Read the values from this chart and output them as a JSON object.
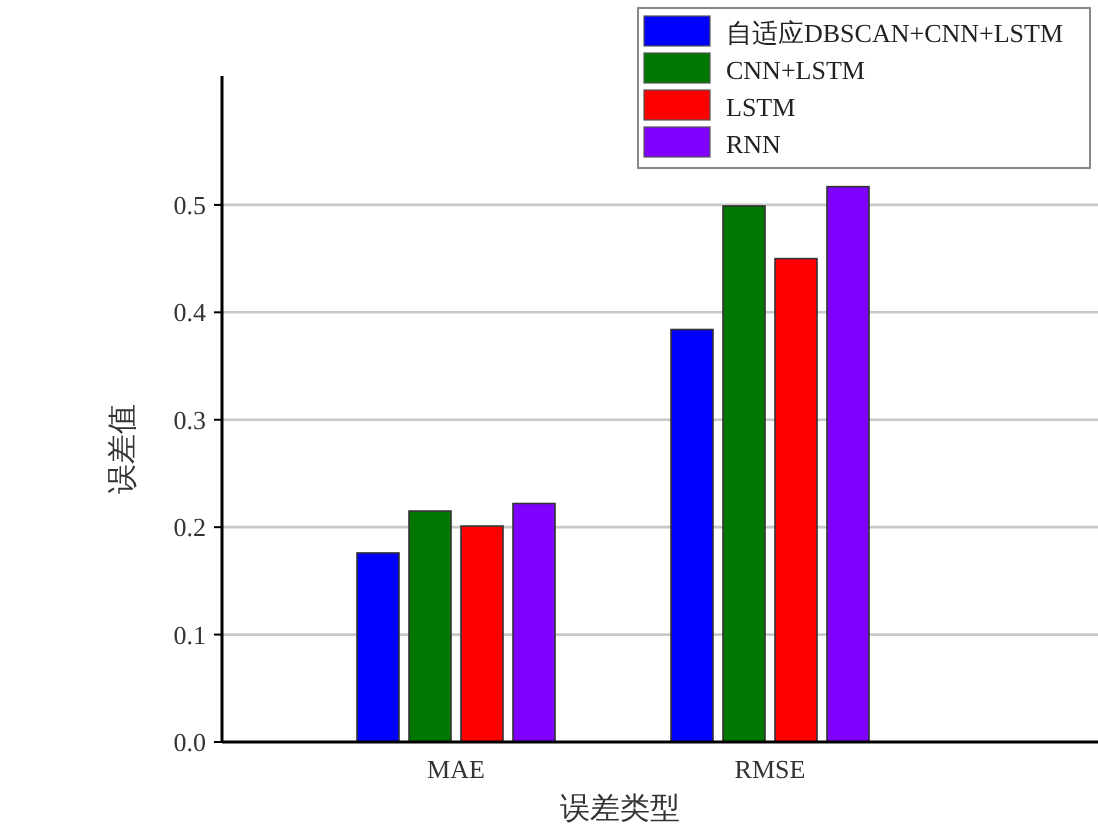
{
  "chart_data": {
    "type": "bar",
    "xlabel": "误差类型",
    "ylabel": "误差值",
    "categories": [
      "MAE",
      "RMSE"
    ],
    "series": [
      {
        "name": "自适应DBSCAN+CNN+LSTM",
        "color": "#0000ff",
        "values": [
          0.176,
          0.384
        ]
      },
      {
        "name": "CNN+LSTM",
        "color": "#007700",
        "values": [
          0.215,
          0.499
        ]
      },
      {
        "name": "LSTM",
        "color": "#ff0000",
        "values": [
          0.201,
          0.45
        ]
      },
      {
        "name": "RNN",
        "color": "#7f00ff",
        "values": [
          0.222,
          0.517
        ]
      }
    ],
    "ylim": [
      0,
      0.62
    ],
    "yticks": [
      {
        "value": 0,
        "label": "0.0"
      },
      0.1,
      0.2,
      0.3,
      0.4,
      0.5
    ],
    "grid": "y",
    "legend": "top right"
  }
}
